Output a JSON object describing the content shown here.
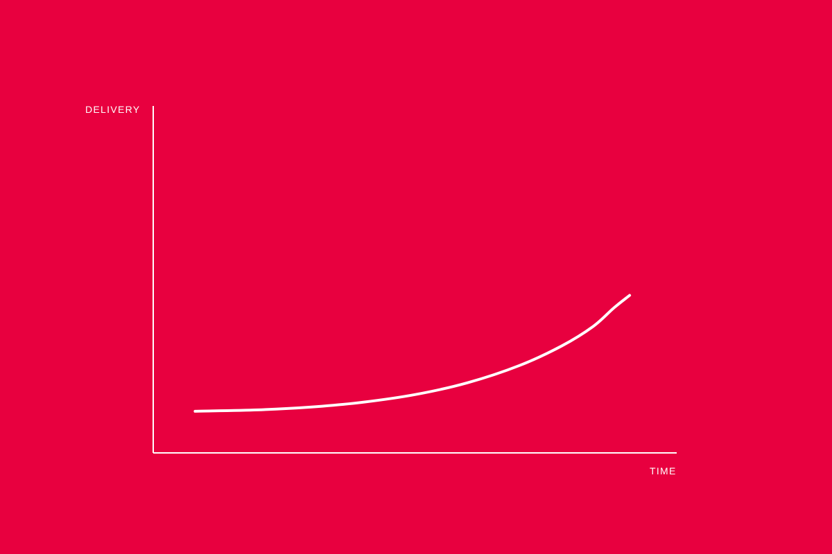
{
  "colors": {
    "background": "#e8003f",
    "foreground": "#ffffff"
  },
  "chart_data": {
    "type": "line",
    "title": "",
    "xlabel": "TIME",
    "ylabel": "DELIVERY",
    "grid": false,
    "legend": "none",
    "xlim": [
      0,
      100
    ],
    "ylim": [
      0,
      100
    ],
    "series": [
      {
        "values": [
          {
            "x": 8,
            "y": 12
          },
          {
            "x": 20,
            "y": 12.4
          },
          {
            "x": 30,
            "y": 13.2
          },
          {
            "x": 40,
            "y": 14.6
          },
          {
            "x": 50,
            "y": 16.8
          },
          {
            "x": 60,
            "y": 20.2
          },
          {
            "x": 70,
            "y": 25.2
          },
          {
            "x": 78,
            "y": 30.8
          },
          {
            "x": 84,
            "y": 36.4
          },
          {
            "x": 88,
            "y": 41.8
          },
          {
            "x": 91,
            "y": 45.4
          }
        ]
      }
    ]
  }
}
